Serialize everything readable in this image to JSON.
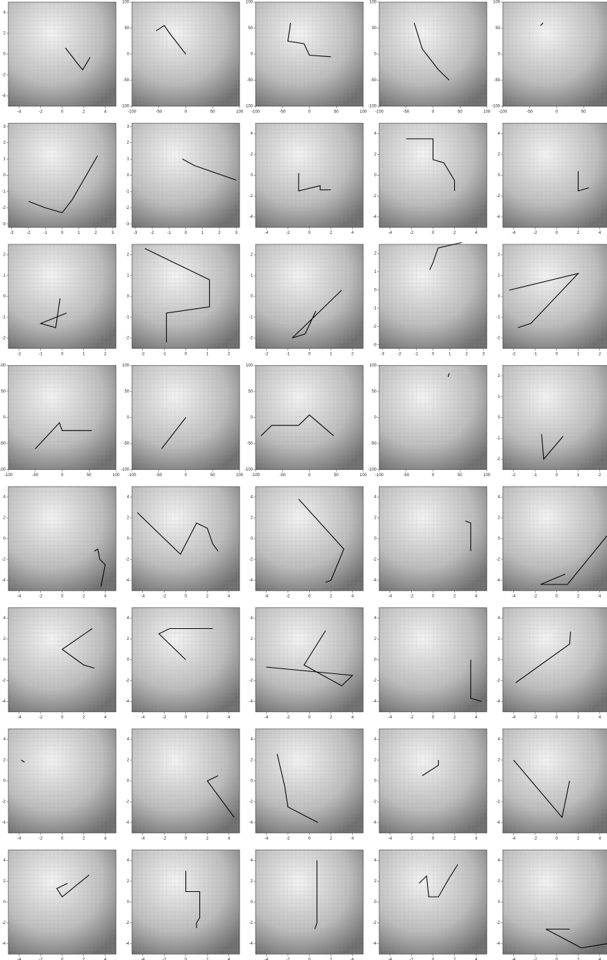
{
  "panels": [
    {
      "xlim": [
        -5,
        5
      ],
      "ylim": [
        -5,
        5
      ],
      "xticks": [
        -4,
        -2,
        0,
        2,
        4
      ],
      "yticks": [
        -4,
        -2,
        0,
        2,
        4
      ],
      "path": {
        "x": [
          2.6,
          1.9,
          1.5,
          0.3
        ],
        "y": [
          -0.3,
          -1.5,
          -1.0,
          0.6
        ]
      }
    },
    {
      "xlim": [
        -100,
        100
      ],
      "ylim": [
        -100,
        100
      ],
      "xticks": [
        -100,
        -50,
        0,
        50,
        100
      ],
      "yticks": [
        -100,
        -50,
        0,
        50,
        100
      ],
      "path": {
        "x": [
          0,
          -30,
          -40,
          -55
        ],
        "y": [
          0,
          40,
          55,
          45
        ]
      }
    },
    {
      "xlim": [
        -100,
        100
      ],
      "ylim": [
        -100,
        100
      ],
      "xticks": [
        -100,
        -50,
        0,
        50,
        100
      ],
      "yticks": [
        -100,
        -50,
        0,
        50,
        100
      ],
      "path": {
        "x": [
          40,
          0,
          -10,
          -40,
          -35
        ],
        "y": [
          -5,
          -2,
          20,
          25,
          60
        ]
      }
    },
    {
      "xlim": [
        -100,
        100
      ],
      "ylim": [
        -100,
        100
      ],
      "xticks": [
        -100,
        -50,
        0,
        50,
        100
      ],
      "yticks": [
        -100,
        -50,
        0,
        50,
        100
      ],
      "path": {
        "x": [
          30,
          10,
          -20,
          -35
        ],
        "y": [
          -50,
          -30,
          10,
          60
        ]
      }
    },
    {
      "xlim": [
        -100,
        100
      ],
      "ylim": [
        -100,
        100
      ],
      "xticks": [
        -100,
        -50,
        0,
        50,
        100
      ],
      "yticks": [
        -100,
        -50,
        0,
        50,
        100
      ],
      "path": {
        "x": [
          -30,
          -25
        ],
        "y": [
          55,
          60
        ]
      }
    },
    {
      "xlim": [
        -3.2,
        3.2
      ],
      "ylim": [
        -3.2,
        3.2
      ],
      "xticks": [
        -3,
        -2,
        -1,
        0,
        1,
        2,
        3
      ],
      "yticks": [
        -3,
        -2,
        -1,
        0,
        1,
        2,
        3
      ],
      "path": {
        "x": [
          2.1,
          0.6,
          0,
          -1,
          -2
        ],
        "y": [
          1.2,
          -1.5,
          -2.3,
          -2,
          -1.6
        ]
      }
    },
    {
      "xlim": [
        -3.2,
        3.2
      ],
      "ylim": [
        -3.2,
        3.2
      ],
      "xticks": [
        -3,
        -2,
        -1,
        0,
        1,
        2,
        3
      ],
      "yticks": [
        -3,
        -2,
        -1,
        0,
        1,
        2,
        3
      ],
      "path": {
        "x": [
          3,
          0.5,
          -0.2
        ],
        "y": [
          -0.3,
          0.6,
          1
        ]
      }
    },
    {
      "xlim": [
        -5,
        5
      ],
      "ylim": [
        -5,
        5
      ],
      "xticks": [
        -4,
        -2,
        0,
        2,
        4
      ],
      "yticks": [
        -4,
        -2,
        0,
        2,
        4
      ],
      "path": {
        "x": [
          -1,
          -1,
          1,
          1,
          2
        ],
        "y": [
          0.2,
          -1.5,
          -1,
          -1.4,
          -1.4
        ]
      }
    },
    {
      "xlim": [
        -5,
        5
      ],
      "ylim": [
        -5,
        5
      ],
      "xticks": [
        -4,
        -2,
        0,
        2,
        4
      ],
      "yticks": [
        -4,
        -2,
        0,
        2,
        4
      ],
      "path": {
        "x": [
          -2.5,
          0,
          0,
          1,
          2,
          2
        ],
        "y": [
          3.5,
          3.5,
          1.5,
          1.2,
          -0.5,
          -1.5
        ]
      }
    },
    {
      "xlim": [
        -5,
        5
      ],
      "ylim": [
        -5,
        5
      ],
      "xticks": [
        -4,
        -2,
        0,
        2,
        4
      ],
      "yticks": [
        -4,
        -2,
        0,
        2,
        4
      ],
      "path": {
        "x": [
          2,
          2,
          3
        ],
        "y": [
          0.4,
          -1.5,
          -1.2
        ]
      }
    },
    {
      "xlim": [
        -2.5,
        2.5
      ],
      "ylim": [
        -2.5,
        2.5
      ],
      "xticks": [
        -2,
        -1,
        0,
        1,
        2
      ],
      "yticks": [
        -2,
        -1,
        0,
        1,
        2
      ],
      "path": {
        "x": [
          -0.1,
          -0.3,
          -1,
          0.2
        ],
        "y": [
          -0.1,
          -1.5,
          -1.3,
          -0.8
        ]
      }
    },
    {
      "xlim": [
        -2.5,
        2.5
      ],
      "ylim": [
        -2.5,
        2.5
      ],
      "xticks": [
        -2,
        -1,
        0,
        1,
        2
      ],
      "yticks": [
        -2,
        -1,
        0,
        1,
        2
      ],
      "path": {
        "x": [
          -1.9,
          1.1,
          1.1,
          -0.9,
          -0.9
        ],
        "y": [
          2.3,
          0.8,
          -0.5,
          -0.8,
          -2.2
        ]
      }
    },
    {
      "xlim": [
        -2.5,
        2.5
      ],
      "ylim": [
        -2.5,
        2.5
      ],
      "xticks": [
        -2,
        -1,
        0,
        1,
        2
      ],
      "yticks": [
        -2,
        -1,
        0,
        1,
        2
      ],
      "path": {
        "x": [
          1.5,
          -0.8,
          -0.2,
          0.3
        ],
        "y": [
          0.3,
          -2,
          -1.8,
          -0.7
        ]
      }
    },
    {
      "xlim": [
        -3.2,
        3.2
      ],
      "ylim": [
        -3.2,
        2.5
      ],
      "xticks": [
        -3,
        -2,
        -1,
        0,
        1,
        2,
        3
      ],
      "yticks": [
        -3,
        -2,
        -1,
        0,
        1,
        2
      ],
      "path": {
        "x": [
          1.7,
          0.3,
          0,
          -0.2
        ],
        "y": [
          2.6,
          2.3,
          1.5,
          1.1
        ]
      }
    },
    {
      "xlim": [
        -2.5,
        2.5
      ],
      "ylim": [
        -2.5,
        2.5
      ],
      "xticks": [
        -2,
        -1,
        0,
        1,
        2
      ],
      "yticks": [
        -2,
        -1,
        0,
        1,
        2
      ],
      "path": {
        "x": [
          -2.2,
          1,
          -1.2,
          -1.8
        ],
        "y": [
          0.3,
          1.1,
          -1.3,
          -1.5
        ]
      }
    },
    {
      "xlim": [
        -100,
        100
      ],
      "ylim": [
        -100,
        100
      ],
      "xticks": [
        -100,
        -50,
        0,
        50,
        100
      ],
      "yticks": [
        -100,
        -50,
        0,
        50,
        100
      ],
      "path": {
        "x": [
          55,
          0,
          -5,
          -50
        ],
        "y": [
          -25,
          -25,
          -10,
          -60
        ]
      }
    },
    {
      "xlim": [
        -100,
        100
      ],
      "ylim": [
        -100,
        100
      ],
      "xticks": [
        -100,
        -50,
        0,
        50,
        100
      ],
      "yticks": [
        -100,
        -50,
        0,
        50,
        100
      ],
      "path": {
        "x": [
          0,
          -45
        ],
        "y": [
          0,
          -60
        ]
      }
    },
    {
      "xlim": [
        -100,
        100
      ],
      "ylim": [
        -100,
        100
      ],
      "xticks": [
        -100,
        -50,
        0,
        50,
        100
      ],
      "yticks": [
        -100,
        -50,
        0,
        50,
        100
      ],
      "path": {
        "x": [
          45,
          0,
          -20,
          -70,
          -90
        ],
        "y": [
          -35,
          5,
          -15,
          -15,
          -35
        ]
      }
    },
    {
      "xlim": [
        -100,
        100
      ],
      "ylim": [
        -100,
        100
      ],
      "xticks": [
        -100,
        -50,
        0,
        50,
        100
      ],
      "yticks": [
        -100,
        -50,
        0,
        50,
        100
      ],
      "path": {
        "x": [
          28,
          30
        ],
        "y": [
          78,
          85
        ]
      }
    },
    {
      "xlim": [
        -2.5,
        2.5
      ],
      "ylim": [
        -2.5,
        2.5
      ],
      "xticks": [
        -2,
        -1,
        0,
        1,
        2
      ],
      "yticks": [
        -2,
        -1,
        0,
        1,
        2
      ],
      "path": {
        "x": [
          -0.7,
          -0.6,
          0.3
        ],
        "y": [
          -0.8,
          -2,
          -0.9
        ]
      }
    },
    {
      "xlim": [
        -5,
        5
      ],
      "ylim": [
        -5,
        5
      ],
      "xticks": [
        -4,
        -2,
        0,
        2,
        4
      ],
      "yticks": [
        -4,
        -2,
        0,
        2,
        4
      ],
      "path": {
        "x": [
          3.6,
          4,
          3.5,
          3.3,
          3
        ],
        "y": [
          -4.6,
          -2.5,
          -2,
          -1,
          -1.2
        ]
      }
    },
    {
      "xlim": [
        -5,
        5
      ],
      "ylim": [
        -5,
        5
      ],
      "xticks": [
        -4,
        -2,
        0,
        2,
        4
      ],
      "yticks": [
        -4,
        -2,
        0,
        2,
        4
      ],
      "path": {
        "x": [
          -4.5,
          -0.5,
          1,
          2,
          2.5,
          3
        ],
        "y": [
          2.5,
          -1.5,
          1.5,
          1,
          -0.5,
          -1.2
        ]
      }
    },
    {
      "xlim": [
        -5,
        5
      ],
      "ylim": [
        -5,
        5
      ],
      "xticks": [
        -4,
        -2,
        0,
        2,
        4
      ],
      "yticks": [
        -4,
        -2,
        0,
        2,
        4
      ],
      "path": {
        "x": [
          -1,
          3.2,
          2,
          1.5
        ],
        "y": [
          3.8,
          -1,
          -4,
          -4.2
        ]
      }
    },
    {
      "xlim": [
        -5,
        5
      ],
      "ylim": [
        -5,
        5
      ],
      "xticks": [
        -4,
        -2,
        0,
        2,
        4
      ],
      "yticks": [
        -4,
        -2,
        0,
        2,
        4
      ],
      "path": {
        "x": [
          3,
          3.5,
          3.5
        ],
        "y": [
          1.7,
          1.5,
          -1.2
        ]
      }
    },
    {
      "xlim": [
        -5,
        5
      ],
      "ylim": [
        -5,
        5
      ],
      "xticks": [
        -4,
        -2,
        0,
        2,
        4
      ],
      "yticks": [
        -4,
        -2,
        0,
        2,
        4
      ],
      "path": {
        "x": [
          0.8,
          -1.5,
          1,
          4.7
        ],
        "y": [
          -3.4,
          -4.4,
          -4.4,
          0.3
        ]
      }
    },
    {
      "xlim": [
        -5,
        5
      ],
      "ylim": [
        -5,
        5
      ],
      "xticks": [
        -4,
        -2,
        0,
        2,
        4
      ],
      "yticks": [
        -4,
        -2,
        0,
        2,
        4
      ],
      "path": {
        "x": [
          2.8,
          0,
          2,
          3
        ],
        "y": [
          3,
          1,
          -0.5,
          -0.8
        ]
      }
    },
    {
      "xlim": [
        -5,
        5
      ],
      "ylim": [
        -5,
        5
      ],
      "xticks": [
        -4,
        -2,
        0,
        2,
        4
      ],
      "yticks": [
        -4,
        -2,
        0,
        2,
        4
      ],
      "path": {
        "x": [
          2.5,
          -1.5,
          -2.5,
          0
        ],
        "y": [
          3,
          3,
          2.5,
          0
        ]
      }
    },
    {
      "xlim": [
        -5,
        5
      ],
      "ylim": [
        -5,
        5
      ],
      "xticks": [
        -4,
        -2,
        0,
        2,
        4
      ],
      "yticks": [
        -4,
        -2,
        0,
        2,
        4
      ],
      "path": {
        "x": [
          1.5,
          -0.5,
          3,
          4,
          -4
        ],
        "y": [
          2.8,
          -0.5,
          -2.5,
          -1.5,
          -0.7
        ]
      }
    },
    {
      "xlim": [
        -5,
        5
      ],
      "ylim": [
        -5,
        5
      ],
      "xticks": [
        -4,
        -2,
        0,
        2,
        4
      ],
      "yticks": [
        -4,
        -2,
        0,
        2,
        4
      ],
      "path": {
        "x": [
          3.5,
          3.5,
          4.5
        ],
        "y": [
          0,
          -3.7,
          -4
        ]
      }
    },
    {
      "xlim": [
        -5,
        5
      ],
      "ylim": [
        -5,
        5
      ],
      "xticks": [
        -4,
        -2,
        0,
        2,
        4
      ],
      "yticks": [
        -4,
        -2,
        0,
        2,
        4
      ],
      "path": {
        "x": [
          -3.8,
          1.2,
          1.3
        ],
        "y": [
          -2.2,
          1.5,
          2.7
        ]
      }
    },
    {
      "xlim": [
        -5,
        5
      ],
      "ylim": [
        -5,
        5
      ],
      "xticks": [
        -4,
        -2,
        0,
        2,
        4
      ],
      "yticks": [
        -4,
        -2,
        0,
        2,
        4
      ],
      "path": {
        "x": [
          -3.8,
          -3.5
        ],
        "y": [
          2,
          1.8
        ]
      }
    },
    {
      "xlim": [
        -5,
        5
      ],
      "ylim": [
        -5,
        5
      ],
      "xticks": [
        -4,
        -2,
        0,
        2,
        4
      ],
      "yticks": [
        -4,
        -2,
        0,
        2,
        4
      ],
      "path": {
        "x": [
          4.5,
          2,
          3
        ],
        "y": [
          -3.5,
          0,
          0.5
        ]
      }
    },
    {
      "xlim": [
        -5,
        5
      ],
      "ylim": [
        -5,
        5
      ],
      "xticks": [
        -4,
        -2,
        0,
        2,
        4
      ],
      "yticks": [
        -4,
        -2,
        0,
        2,
        4
      ],
      "path": {
        "x": [
          -3,
          -2.3,
          -2,
          0.8
        ],
        "y": [
          2.6,
          -0.5,
          -2.5,
          -4
        ]
      }
    },
    {
      "xlim": [
        -5,
        5
      ],
      "ylim": [
        -5,
        5
      ],
      "xticks": [
        -4,
        -2,
        0,
        2,
        4
      ],
      "yticks": [
        -4,
        -2,
        0,
        2,
        4
      ],
      "path": {
        "x": [
          0.5,
          0.5,
          -1
        ],
        "y": [
          2,
          1.5,
          0.5
        ]
      }
    },
    {
      "xlim": [
        -5,
        5
      ],
      "ylim": [
        -5,
        5
      ],
      "xticks": [
        -4,
        -2,
        0,
        2,
        4
      ],
      "yticks": [
        -4,
        -2,
        0,
        2,
        4
      ],
      "path": {
        "x": [
          1.2,
          0.5,
          -4
        ],
        "y": [
          0,
          -3.5,
          2
        ]
      }
    },
    {
      "xlim": [
        -5,
        5
      ],
      "ylim": [
        -5,
        5
      ],
      "xticks": [
        -4,
        -2,
        0,
        2,
        4
      ],
      "yticks": [
        -4,
        -2,
        0,
        2,
        4
      ],
      "path": {
        "x": [
          0.5,
          -0.5,
          0,
          2.5
        ],
        "y": [
          1.8,
          1.3,
          0.5,
          2.6
        ]
      }
    },
    {
      "xlim": [
        -5,
        5
      ],
      "ylim": [
        -5,
        5
      ],
      "xticks": [
        -4,
        -2,
        0,
        2,
        4
      ],
      "yticks": [
        -4,
        -2,
        0,
        2,
        4
      ],
      "path": {
        "x": [
          0,
          0,
          1.3,
          1.3,
          1,
          1
        ],
        "y": [
          3,
          1,
          1,
          -1.5,
          -2,
          -2.5
        ]
      }
    },
    {
      "xlim": [
        -5,
        5
      ],
      "ylim": [
        -5,
        5
      ],
      "xticks": [
        -4,
        -2,
        0,
        2,
        4
      ],
      "yticks": [
        -4,
        -2,
        0,
        2,
        4
      ],
      "path": {
        "x": [
          0.7,
          0.7,
          0.5
        ],
        "y": [
          4,
          -2,
          -2.6
        ]
      }
    },
    {
      "xlim": [
        -5,
        5
      ],
      "ylim": [
        -5,
        5
      ],
      "xticks": [
        -4,
        -2,
        0,
        2,
        4
      ],
      "yticks": [
        -4,
        -2,
        0,
        2,
        4
      ],
      "path": {
        "x": [
          -1.3,
          -0.6,
          -0.4,
          0.5,
          1.5,
          2.3
        ],
        "y": [
          1.8,
          2.5,
          0.5,
          0.5,
          2.3,
          3.6
        ]
      }
    },
    {
      "xlim": [
        -5,
        5
      ],
      "ylim": [
        -5,
        5
      ],
      "xticks": [
        -4,
        -2,
        0,
        2,
        4
      ],
      "yticks": [
        -4,
        -2,
        0,
        2,
        4
      ],
      "path": {
        "x": [
          4.7,
          2.3,
          -1,
          1.2
        ],
        "y": [
          -4,
          -4.4,
          -2.6,
          -2.6
        ]
      }
    }
  ]
}
